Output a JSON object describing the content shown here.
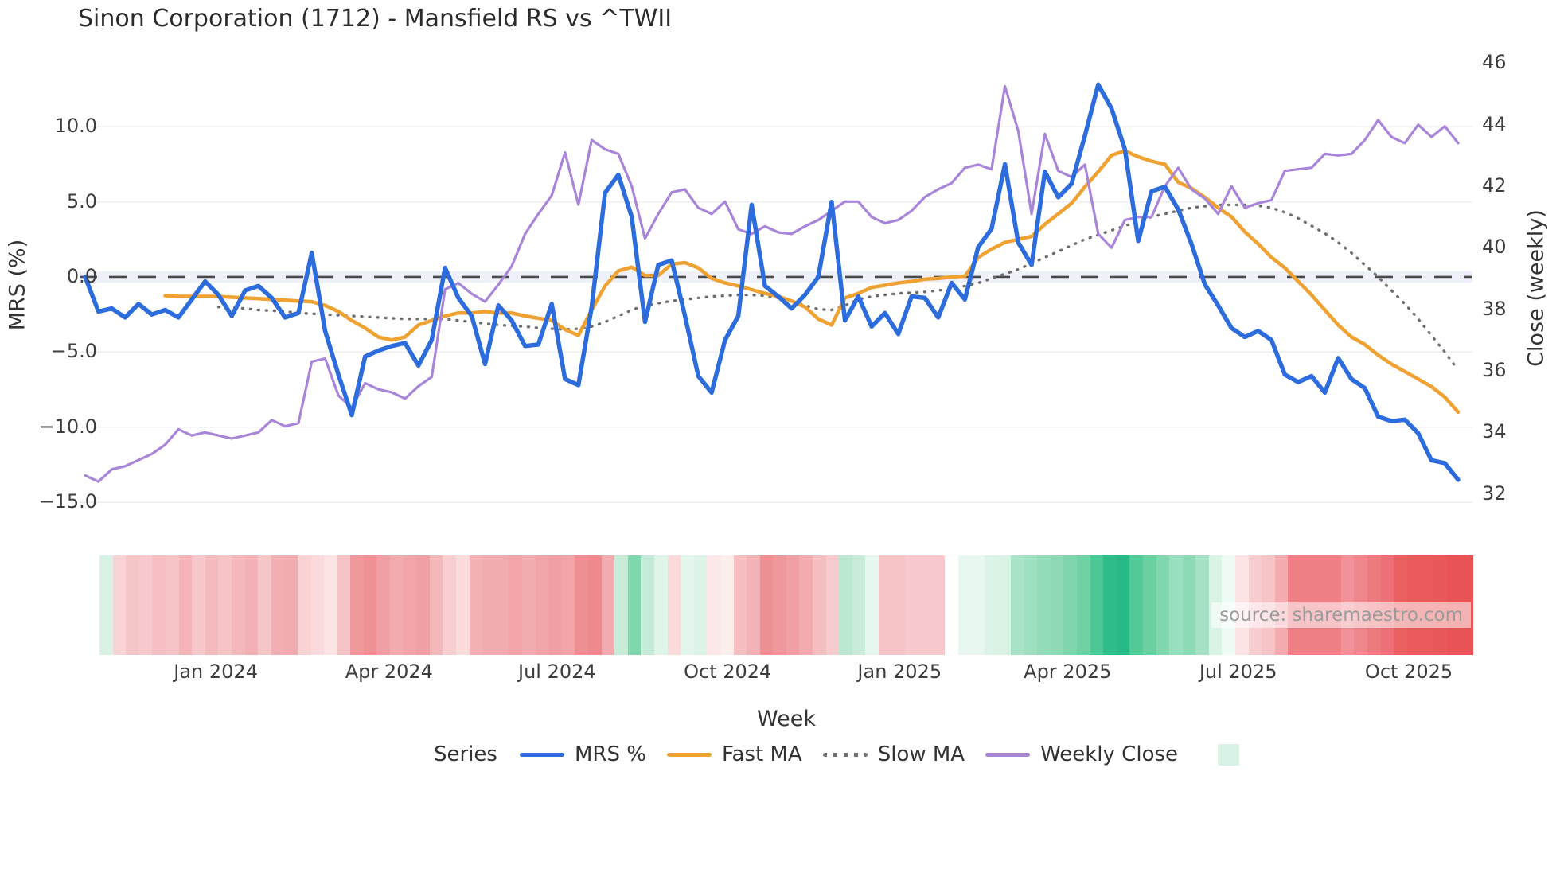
{
  "chart_data": {
    "type": "line",
    "title": "Sinon Corporation (1712) - Mansfield RS vs ^TWII",
    "xlabel": "Week",
    "ylabel_left": "MRS (%)",
    "ylabel_right": "Close (weekly)",
    "source_note": "source: sharemaestro.com",
    "grid": true,
    "legend_position": "bottom",
    "x_weeks": 104,
    "ylim_left": [
      -16.0,
      15.52
    ],
    "ylim_right": [
      31.24,
      46.63
    ],
    "y_ticks_left": [
      {
        "value": 10,
        "label": "10.0"
      },
      {
        "value": 5,
        "label": "5.0"
      },
      {
        "value": 0,
        "label": "0.0"
      },
      {
        "value": -5,
        "label": "−5.0"
      },
      {
        "value": -10,
        "label": "−10.0"
      },
      {
        "value": -15,
        "label": "−15.0"
      }
    ],
    "y_ticks_right": [
      {
        "value": 46,
        "label": "46"
      },
      {
        "value": 44,
        "label": "44"
      },
      {
        "value": 42,
        "label": "42"
      },
      {
        "value": 40,
        "label": "40"
      },
      {
        "value": 38,
        "label": "38"
      },
      {
        "value": 36,
        "label": "36"
      },
      {
        "value": 34,
        "label": "34"
      },
      {
        "value": 32,
        "label": "32"
      }
    ],
    "x_ticks": [
      {
        "week": 9.8,
        "label": "Jan 2024"
      },
      {
        "week": 22.8,
        "label": "Apr 2024"
      },
      {
        "week": 35.4,
        "label": "Jul 2024"
      },
      {
        "week": 48.2,
        "label": "Oct 2024"
      },
      {
        "week": 61.1,
        "label": "Jan 2025"
      },
      {
        "week": 73.7,
        "label": "Apr 2025"
      },
      {
        "week": 86.5,
        "label": "Jul 2025"
      },
      {
        "week": 99.3,
        "label": "Oct 2025"
      }
    ],
    "colors": {
      "mrs": "#2c6cdc",
      "fast_ma": "#efa231",
      "slow_ma": "#6f6f6f",
      "weekly_close": "#a985da",
      "zero_line": "#4a4a4a",
      "zero_band": "#e2e8f7",
      "grid": "#ececf1",
      "legend_heat_swatch": "#d9f2e6"
    },
    "legend": {
      "title": "Series",
      "items": [
        {
          "label": "MRS %"
        },
        {
          "label": "Fast MA"
        },
        {
          "label": "Slow MA"
        },
        {
          "label": "Weekly Close"
        }
      ]
    },
    "series": [
      {
        "name": "MRS %",
        "axis": "left",
        "style": "solid",
        "values": [
          0.0,
          -2.3,
          -2.1,
          -2.7,
          -1.8,
          -2.5,
          -2.2,
          -2.7,
          -1.5,
          -0.3,
          -1.2,
          -2.6,
          -0.9,
          -0.6,
          -1.4,
          -2.7,
          -2.4,
          1.6,
          -3.6,
          -6.5,
          -9.2,
          -5.3,
          -4.9,
          -4.6,
          -4.4,
          -5.9,
          -4.2,
          0.6,
          -1.4,
          -2.6,
          -5.8,
          -1.9,
          -2.9,
          -4.6,
          -4.5,
          -1.8,
          -6.8,
          -7.2,
          -2.0,
          5.6,
          6.8,
          4.0,
          -3.0,
          0.8,
          1.1,
          -2.6,
          -6.6,
          -7.7,
          -4.2,
          -2.6,
          4.8,
          -0.6,
          -1.3,
          -2.1,
          -1.2,
          0.0,
          5.0,
          -2.9,
          -1.3,
          -3.3,
          -2.4,
          -3.8,
          -1.3,
          -1.4,
          -2.7,
          -0.4,
          -1.5,
          2.0,
          3.2,
          7.5,
          2.3,
          0.8,
          7.0,
          5.3,
          6.2,
          9.4,
          12.8,
          11.2,
          8.5,
          2.4,
          5.7,
          6.0,
          4.5,
          2.2,
          -0.5,
          -1.9,
          -3.4,
          -4.0,
          -3.6,
          -4.2,
          -6.5,
          -7.0,
          -6.6,
          -7.7,
          -5.4,
          -6.8,
          -7.4,
          -9.3,
          -9.6,
          -9.5,
          -10.4,
          -12.2,
          -12.4,
          -13.5
        ]
      },
      {
        "name": "Fast MA",
        "axis": "left",
        "style": "solid",
        "values": [
          null,
          null,
          null,
          null,
          null,
          null,
          -1.25,
          -1.3,
          -1.3,
          -1.3,
          -1.3,
          -1.35,
          -1.4,
          -1.45,
          -1.5,
          -1.55,
          -1.6,
          -1.65,
          -1.9,
          -2.3,
          -2.9,
          -3.4,
          -4.0,
          -4.2,
          -4.0,
          -3.2,
          -2.9,
          -2.6,
          -2.4,
          -2.4,
          -2.3,
          -2.4,
          -2.4,
          -2.6,
          -2.75,
          -2.9,
          -3.5,
          -3.9,
          -2.2,
          -0.6,
          0.4,
          0.65,
          0.1,
          0.1,
          0.85,
          0.95,
          0.6,
          -0.1,
          -0.4,
          -0.6,
          -0.85,
          -1.1,
          -1.3,
          -1.6,
          -2.0,
          -2.8,
          -3.2,
          -1.4,
          -1.1,
          -0.7,
          -0.55,
          -0.4,
          -0.3,
          -0.15,
          -0.1,
          0.0,
          0.05,
          1.3,
          1.85,
          2.3,
          2.5,
          2.7,
          3.5,
          4.2,
          4.9,
          6.0,
          7.0,
          8.1,
          8.4,
          8.0,
          7.7,
          7.5,
          6.3,
          5.9,
          5.3,
          4.6,
          4.0,
          3.0,
          2.2,
          1.3,
          0.6,
          -0.3,
          -1.2,
          -2.2,
          -3.2,
          -4.0,
          -4.5,
          -5.2,
          -5.8,
          -6.3,
          -6.8,
          -7.3,
          -8.0,
          -9.0
        ]
      },
      {
        "name": "Slow MA",
        "axis": "left",
        "style": "dotted",
        "values": [
          null,
          null,
          null,
          null,
          null,
          null,
          null,
          null,
          null,
          null,
          -2.0,
          -2.05,
          -2.1,
          -2.2,
          -2.25,
          -2.3,
          -2.4,
          -2.45,
          -2.5,
          -2.55,
          -2.6,
          -2.65,
          -2.7,
          -2.75,
          -2.8,
          -2.8,
          -2.8,
          -2.8,
          -2.9,
          -3.0,
          -3.1,
          -3.2,
          -3.25,
          -3.3,
          -3.4,
          -3.45,
          -3.5,
          -3.45,
          -3.3,
          -3.0,
          -2.6,
          -2.2,
          -1.9,
          -1.75,
          -1.6,
          -1.5,
          -1.4,
          -1.3,
          -1.25,
          -1.2,
          -1.2,
          -1.25,
          -1.4,
          -1.6,
          -1.9,
          -2.15,
          -2.2,
          -1.9,
          -1.5,
          -1.3,
          -1.2,
          -1.1,
          -1.05,
          -1.0,
          -0.9,
          -0.8,
          -0.6,
          -0.4,
          -0.1,
          0.2,
          0.5,
          0.9,
          1.3,
          1.7,
          2.1,
          2.5,
          2.8,
          3.1,
          3.4,
          3.7,
          4.0,
          4.2,
          4.4,
          4.6,
          4.7,
          4.8,
          4.8,
          4.8,
          4.75,
          4.6,
          4.3,
          3.9,
          3.4,
          2.9,
          2.3,
          1.6,
          0.8,
          0.0,
          -0.9,
          -1.8,
          -2.8,
          -3.9,
          -5.0,
          -6.2
        ]
      },
      {
        "name": "Weekly Close",
        "axis": "right",
        "style": "solid",
        "values": [
          32.6,
          32.4,
          32.8,
          32.9,
          33.1,
          33.3,
          33.6,
          34.1,
          33.9,
          34.0,
          33.9,
          33.8,
          33.9,
          34.0,
          34.4,
          34.2,
          34.3,
          36.3,
          36.4,
          35.2,
          34.8,
          35.6,
          35.4,
          35.3,
          35.1,
          35.5,
          35.8,
          38.65,
          38.85,
          38.5,
          38.25,
          38.8,
          39.4,
          40.45,
          41.1,
          41.7,
          43.1,
          41.4,
          43.5,
          43.2,
          43.05,
          42.0,
          40.3,
          41.1,
          41.8,
          41.9,
          41.3,
          41.1,
          41.5,
          40.6,
          40.45,
          40.7,
          40.5,
          40.45,
          40.7,
          40.9,
          41.2,
          41.5,
          41.5,
          41.0,
          40.8,
          40.9,
          41.2,
          41.65,
          41.9,
          42.1,
          42.6,
          42.7,
          42.55,
          45.25,
          43.8,
          41.1,
          43.7,
          42.5,
          42.3,
          42.7,
          40.45,
          40.0,
          40.9,
          41.0,
          41.0,
          42.0,
          42.6,
          41.9,
          41.6,
          41.1,
          42.0,
          41.3,
          41.45,
          41.55,
          42.5,
          42.55,
          42.6,
          43.05,
          43.0,
          43.05,
          43.5,
          44.15,
          43.6,
          43.4,
          44.0,
          43.6,
          43.95,
          43.4
        ]
      }
    ],
    "heatmap_colors": [
      "#d8f3e6",
      "#f9d4d6",
      "#f6c5c8",
      "#f7c9cc",
      "#f5bfc3",
      "#f6c3c6",
      "#f3b3b7",
      "#f7c8cb",
      "#f4babe",
      "#f6c3c6",
      "#f4b8bc",
      "#f3b1b5",
      "#f6c5c8",
      "#f2aeb2",
      "#f2abaf",
      "#f9d2d4",
      "#fadadd",
      "#fce4e5",
      "#f6c4c7",
      "#f0999d",
      "#ee9094",
      "#f0a0a4",
      "#f2abaf",
      "#f1a5a9",
      "#f0a0a4",
      "#f4b8bb",
      "#f8ced0",
      "#fbdcdd",
      "#f3b1b5",
      "#f2abaf",
      "#f2abaf",
      "#f1a5a9",
      "#f2abaf",
      "#f1a5a9",
      "#f0a0a4",
      "#f1a5a9",
      "#ee8f93",
      "#ee8a8e",
      "#f2acb0",
      "#c9ecd9",
      "#7fd8ad",
      "#c4ebd7",
      "#dff5e9",
      "#fadada",
      "#e3f6ec",
      "#ddf4e8",
      "#fce8e9",
      "#fdeeee",
      "#f5bfc2",
      "#f3b2b5",
      "#ee8f93",
      "#ef989c",
      "#f0a0a4",
      "#f2abae",
      "#f5bfc2",
      "#f8cbce",
      "#bce8d2",
      "#c8ecd9",
      "#e6f7ee",
      "#f6c3c6",
      "#f6c3c6",
      "#f7c9cc",
      "#f7c9cc",
      "#f7c9cc",
      "#ffffff",
      "#e8f8f0",
      "#e8f8f0",
      "#dcf4e7",
      "#d9f3e5",
      "#a8e3c7",
      "#9fe0c1",
      "#93dcba",
      "#8edab7",
      "#7fd6ac",
      "#6fd1a4",
      "#4cc795",
      "#2fbd8a",
      "#28ba86",
      "#52c997",
      "#6bcfa0",
      "#83d7af",
      "#9adec0",
      "#8cdab6",
      "#a5e2c5",
      "#d9f3e5",
      "#eefaf4",
      "#fce4e5",
      "#f8cdd0",
      "#f6c3c6",
      "#f2abaf",
      "#ee7f84",
      "#ee7f84",
      "#ee7f84",
      "#ee7f84",
      "#f09297",
      "#ee868b",
      "#ed7a7f",
      "#ec7076",
      "#e9605f",
      "#e85a5c",
      "#e85a5c",
      "#e8575a",
      "#e85456",
      "#e85456"
    ]
  }
}
